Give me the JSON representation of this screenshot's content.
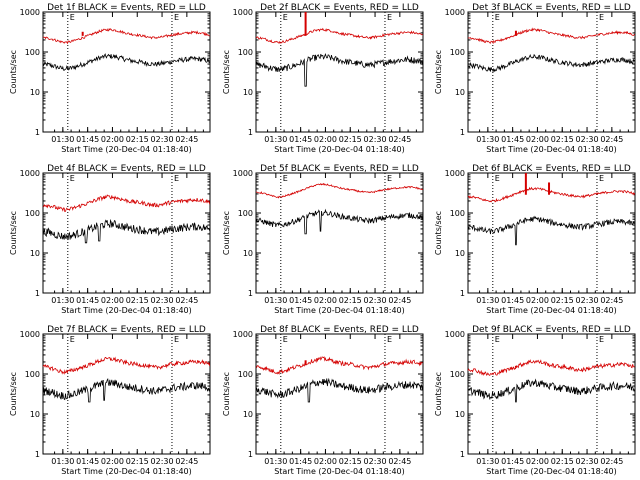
{
  "chart_data": [
    {
      "type": "line",
      "title": "Det 1f BLACK = Events, RED = LLD",
      "xlabel": "Start Time (20-Dec-04 01:18:40)",
      "ylabel": "Counts/sec",
      "yscale": "log",
      "ylim": [
        1,
        1000
      ],
      "yticks": [
        "1",
        "10",
        "100",
        "1000"
      ],
      "xticks": [
        "01:30",
        "01:45",
        "02:00",
        "02:15",
        "02:30",
        "02:45"
      ],
      "markers": [
        "01:33",
        "02:36"
      ],
      "marker_labels": [
        "E",
        "E"
      ],
      "series": [
        {
          "color": "#000000",
          "level": 50,
          "amplitude": 28,
          "noise": 0.06,
          "dips": []
        },
        {
          "color": "#d40000",
          "level": 230,
          "amplitude": 140,
          "noise": 0.03,
          "spikes": [
            {
              "time": "01:42",
              "value": 320
            }
          ]
        }
      ]
    },
    {
      "type": "line",
      "title": "Det 2f BLACK = Events, RED = LLD",
      "xlabel": "Start Time (20-Dec-04 01:18:40)",
      "ylabel": "Counts/sec",
      "yscale": "log",
      "ylim": [
        1,
        1000
      ],
      "yticks": [
        "1",
        "10",
        "100",
        "1000"
      ],
      "xticks": [
        "01:30",
        "01:45",
        "02:00",
        "02:15",
        "02:30",
        "02:45"
      ],
      "markers": [
        "01:33",
        "02:36"
      ],
      "marker_labels": [
        "E",
        "E"
      ],
      "series": [
        {
          "color": "#000000",
          "level": 48,
          "amplitude": 25,
          "noise": 0.08,
          "dips": [
            {
              "time": "01:48",
              "value": 14
            }
          ]
        },
        {
          "color": "#d40000",
          "level": 230,
          "amplitude": 140,
          "noise": 0.03,
          "spikes": [
            {
              "time": "01:48",
              "value": 1000
            }
          ]
        }
      ]
    },
    {
      "type": "line",
      "title": "Det 3f BLACK = Events, RED = LLD",
      "xlabel": "Start Time (20-Dec-04 01:18:40)",
      "ylabel": "Counts/sec",
      "yscale": "log",
      "ylim": [
        1,
        1000
      ],
      "yticks": [
        "1",
        "10",
        "100",
        "1000"
      ],
      "xticks": [
        "01:30",
        "01:45",
        "02:00",
        "02:15",
        "02:30",
        "02:45"
      ],
      "markers": [
        "01:33",
        "02:36"
      ],
      "marker_labels": [
        "E",
        "E"
      ],
      "series": [
        {
          "color": "#000000",
          "level": 48,
          "amplitude": 22,
          "noise": 0.06,
          "dips": []
        },
        {
          "color": "#d40000",
          "level": 230,
          "amplitude": 130,
          "noise": 0.03,
          "spikes": [
            {
              "time": "01:47",
              "value": 340
            }
          ]
        }
      ]
    },
    {
      "type": "line",
      "title": "Det 4f BLACK = Events, RED = LLD",
      "xlabel": "Start Time (20-Dec-04 01:18:40)",
      "ylabel": "Counts/sec",
      "yscale": "log",
      "ylim": [
        1,
        1000
      ],
      "yticks": [
        "1",
        "10",
        "100",
        "1000"
      ],
      "xticks": [
        "01:30",
        "01:45",
        "02:00",
        "02:15",
        "02:30",
        "02:45"
      ],
      "markers": [
        "01:33",
        "02:36"
      ],
      "marker_labels": [
        "E",
        "E"
      ],
      "series": [
        {
          "color": "#000000",
          "level": 34,
          "amplitude": 22,
          "noise": 0.1,
          "dips": [
            {
              "time": "01:44",
              "value": 18
            },
            {
              "time": "01:52",
              "value": 20
            }
          ]
        },
        {
          "color": "#d40000",
          "level": 160,
          "amplitude": 120,
          "noise": 0.05,
          "spikes": []
        }
      ]
    },
    {
      "type": "line",
      "title": "Det 5f BLACK = Events, RED = LLD",
      "xlabel": "Start Time (20-Dec-04 01:18:40)",
      "ylabel": "Counts/sec",
      "yscale": "log",
      "ylim": [
        1,
        1000
      ],
      "yticks": [
        "1",
        "10",
        "100",
        "1000"
      ],
      "xticks": [
        "01:30",
        "01:45",
        "02:00",
        "02:15",
        "02:30",
        "02:45"
      ],
      "markers": [
        "01:33",
        "02:36"
      ],
      "marker_labels": [
        "E",
        "E"
      ],
      "series": [
        {
          "color": "#000000",
          "level": 65,
          "amplitude": 40,
          "noise": 0.07,
          "dips": [
            {
              "time": "01:48",
              "value": 30
            },
            {
              "time": "01:57",
              "value": 35
            }
          ]
        },
        {
          "color": "#d40000",
          "level": 330,
          "amplitude": 220,
          "noise": 0.02,
          "spikes": []
        }
      ]
    },
    {
      "type": "line",
      "title": "Det 6f BLACK = Events, RED = LLD",
      "xlabel": "Start Time (20-Dec-04 01:18:40)",
      "ylabel": "Counts/sec",
      "yscale": "log",
      "ylim": [
        1,
        1000
      ],
      "yticks": [
        "1",
        "10",
        "100",
        "1000"
      ],
      "xticks": [
        "01:30",
        "01:45",
        "02:00",
        "02:15",
        "02:30",
        "02:45"
      ],
      "markers": [
        "01:33",
        "02:36"
      ],
      "marker_labels": [
        "E",
        "E"
      ],
      "series": [
        {
          "color": "#000000",
          "level": 45,
          "amplitude": 20,
          "noise": 0.07,
          "dips": [
            {
              "time": "01:47",
              "value": 16
            }
          ]
        },
        {
          "color": "#d40000",
          "level": 260,
          "amplitude": 120,
          "noise": 0.03,
          "spikes": [
            {
              "time": "01:53",
              "value": 1000
            },
            {
              "time": "02:07",
              "value": 580
            }
          ]
        }
      ]
    },
    {
      "type": "line",
      "title": "Det 7f BLACK = Events, RED = LLD",
      "xlabel": "Start Time (20-Dec-04 01:18:40)",
      "ylabel": "Counts/sec",
      "yscale": "log",
      "ylim": [
        1,
        1000
      ],
      "yticks": [
        "1",
        "10",
        "100",
        "1000"
      ],
      "xticks": [
        "01:30",
        "01:45",
        "02:00",
        "02:15",
        "02:30",
        "02:45"
      ],
      "markers": [
        "01:33",
        "02:36"
      ],
      "marker_labels": [
        "E",
        "E"
      ],
      "series": [
        {
          "color": "#000000",
          "level": 38,
          "amplitude": 30,
          "noise": 0.1,
          "dips": [
            {
              "time": "01:46",
              "value": 20
            },
            {
              "time": "01:55",
              "value": 22
            }
          ]
        },
        {
          "color": "#d40000",
          "level": 150,
          "amplitude": 140,
          "noise": 0.05,
          "spikes": []
        }
      ]
    },
    {
      "type": "line",
      "title": "Det 8f BLACK = Events, RED = LLD",
      "xlabel": "Start Time (20-Dec-04 01:18:40)",
      "ylabel": "Counts/sec",
      "yscale": "log",
      "ylim": [
        1,
        1000
      ],
      "yticks": [
        "1",
        "10",
        "100",
        "1000"
      ],
      "xticks": [
        "01:30",
        "01:45",
        "02:00",
        "02:15",
        "02:30",
        "02:45"
      ],
      "markers": [
        "01:33",
        "02:36"
      ],
      "marker_labels": [
        "E",
        "E"
      ],
      "series": [
        {
          "color": "#000000",
          "level": 40,
          "amplitude": 30,
          "noise": 0.1,
          "dips": [
            {
              "time": "01:50",
              "value": 20
            }
          ]
        },
        {
          "color": "#d40000",
          "level": 150,
          "amplitude": 140,
          "noise": 0.05,
          "spikes": [
            {
              "time": "01:48",
              "value": 220
            }
          ]
        }
      ]
    },
    {
      "type": "line",
      "title": "Det 9f BLACK = Events, RED = LLD",
      "xlabel": "Start Time (20-Dec-04 01:18:40)",
      "ylabel": "Counts/sec",
      "yscale": "log",
      "ylim": [
        1,
        1000
      ],
      "yticks": [
        "1",
        "10",
        "100",
        "1000"
      ],
      "xticks": [
        "01:30",
        "01:45",
        "02:00",
        "02:15",
        "02:30",
        "02:45"
      ],
      "markers": [
        "01:33",
        "02:36"
      ],
      "marker_labels": [
        "E",
        "E"
      ],
      "series": [
        {
          "color": "#000000",
          "level": 38,
          "amplitude": 28,
          "noise": 0.1,
          "dips": [
            {
              "time": "01:47",
              "value": 20
            }
          ]
        },
        {
          "color": "#d40000",
          "level": 130,
          "amplitude": 120,
          "noise": 0.05,
          "spikes": [
            {
              "time": "01:47",
              "value": 160
            }
          ]
        }
      ]
    }
  ]
}
